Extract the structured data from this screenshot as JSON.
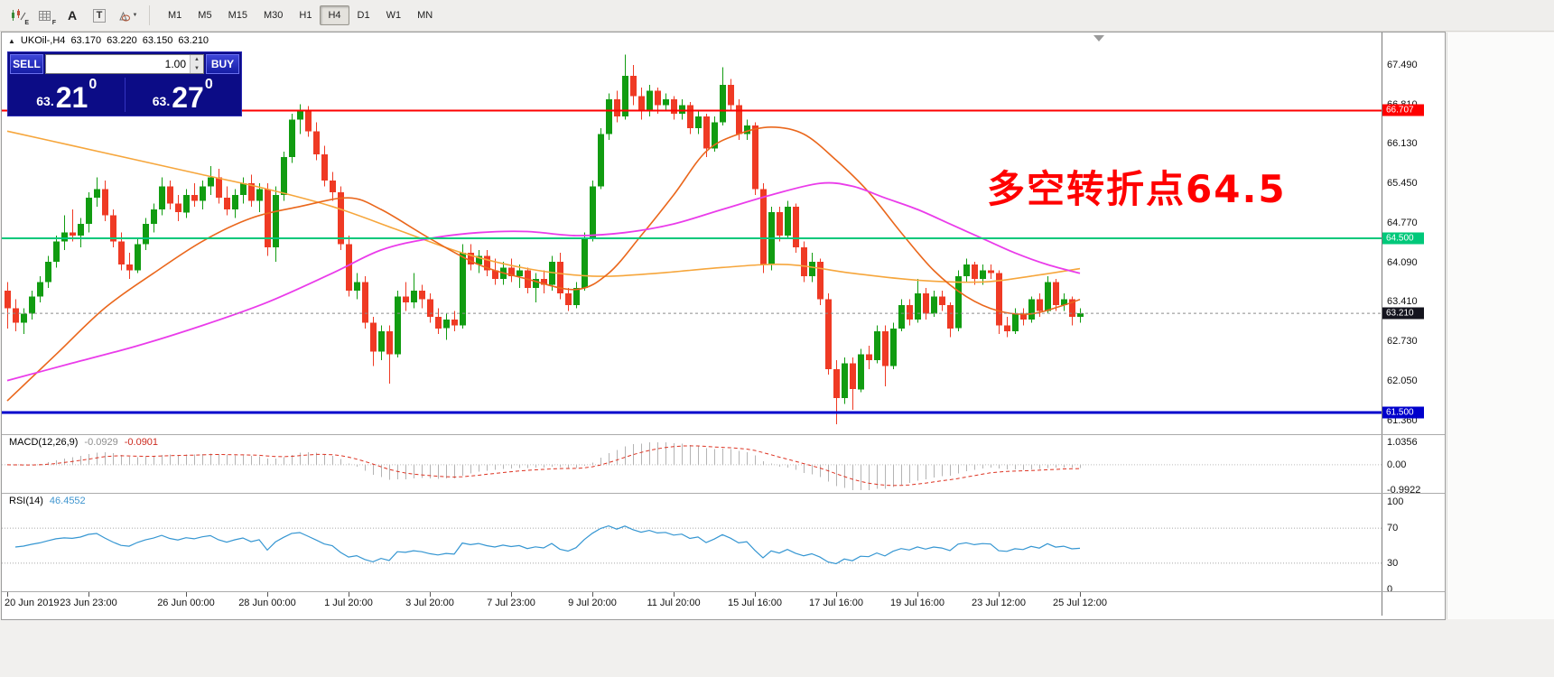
{
  "toolbar": {
    "icons": [
      {
        "name": "indicator-chart-icon",
        "sub": "E"
      },
      {
        "name": "data-grid-icon",
        "sub": "F"
      },
      {
        "name": "text-label-icon",
        "glyph": "A"
      },
      {
        "name": "text-box-icon",
        "glyph": "T"
      },
      {
        "name": "shapes-icon",
        "caret": "▼"
      }
    ],
    "timeframes": [
      {
        "label": "M1",
        "active": false
      },
      {
        "label": "M5",
        "active": false
      },
      {
        "label": "M15",
        "active": false
      },
      {
        "label": "M30",
        "active": false
      },
      {
        "label": "H1",
        "active": false
      },
      {
        "label": "H4",
        "active": true
      },
      {
        "label": "D1",
        "active": false
      },
      {
        "label": "W1",
        "active": false
      },
      {
        "label": "MN",
        "active": false
      }
    ]
  },
  "chart": {
    "panel_toggle_icon": "▲",
    "symbol_tf": "UKOil-,H4",
    "ohlc": {
      "open": "63.170",
      "high": "63.220",
      "low": "63.150",
      "close": "63.210"
    },
    "annotation": {
      "text": "多空转折点64.5",
      "color": "#ff0000"
    }
  },
  "trade_panel": {
    "sell_label": "SELL",
    "buy_label": "BUY",
    "volume": "1.00",
    "icons": {
      "up": "▲",
      "down": "▼"
    },
    "bid": {
      "prefix": "63.",
      "main": "21",
      "sup": "0"
    },
    "ask": {
      "prefix": "63.",
      "main": "27",
      "sup": "0"
    }
  },
  "indicators": {
    "macd": {
      "name": "MACD(12,26,9)",
      "value_main": "-0.0929",
      "value_signal": "-0.0901",
      "axis": [
        "1.0356",
        "0.00",
        "-0.9922"
      ]
    },
    "rsi": {
      "name": "RSI(14)",
      "value": "46.4552",
      "levels": [
        "100",
        "70",
        "30",
        "0"
      ]
    }
  },
  "chart_data": {
    "type": "candlestick",
    "symbol": "UKOil-",
    "timeframe": "H4",
    "up_color": "#119c11",
    "down_color": "#ef3a24",
    "price_ticks": [
      67.49,
      66.81,
      66.13,
      65.45,
      64.77,
      64.09,
      63.41,
      62.73,
      62.05,
      61.36
    ],
    "hlines": [
      {
        "price": 66.707,
        "label": "66.707",
        "color": "#fe0000",
        "width": 2
      },
      {
        "price": 64.5,
        "label": "64.500",
        "color": "#00c87a",
        "width": 2
      },
      {
        "price": 61.5,
        "label": "61.500",
        "color": "#0000cc",
        "width": 3
      }
    ],
    "bid_line": {
      "price": 63.21,
      "label": "63.210",
      "color": "#8b8b8b",
      "tag_bg": "#14141e"
    },
    "macd_display": {
      "max": 1.0356,
      "min": -0.9922,
      "value_main": -0.0929,
      "value_signal": -0.0901
    },
    "rsi_display": {
      "value": 46.4552
    },
    "rsi_levels": [
      70,
      30
    ],
    "candles": [
      [
        63.6,
        63.75,
        62.95,
        63.3
      ],
      [
        63.3,
        63.45,
        62.9,
        63.05
      ],
      [
        63.05,
        63.3,
        62.85,
        63.2
      ],
      [
        63.2,
        63.6,
        63.1,
        63.5
      ],
      [
        63.5,
        63.85,
        63.4,
        63.75
      ],
      [
        63.75,
        64.2,
        63.65,
        64.1
      ],
      [
        64.1,
        64.55,
        64.0,
        64.45
      ],
      [
        64.45,
        64.9,
        64.3,
        64.6
      ],
      [
        64.6,
        65.0,
        64.45,
        64.55
      ],
      [
        64.55,
        64.85,
        64.35,
        64.75
      ],
      [
        64.75,
        65.3,
        64.6,
        65.2
      ],
      [
        65.2,
        65.55,
        65.05,
        65.35
      ],
      [
        65.35,
        65.5,
        64.8,
        64.9
      ],
      [
        64.9,
        65.0,
        64.35,
        64.45
      ],
      [
        64.45,
        64.6,
        63.95,
        64.05
      ],
      [
        64.05,
        64.25,
        63.8,
        63.95
      ],
      [
        63.95,
        64.5,
        63.9,
        64.4
      ],
      [
        64.4,
        64.85,
        64.3,
        64.75
      ],
      [
        64.75,
        65.1,
        64.6,
        65.0
      ],
      [
        65.0,
        65.55,
        64.9,
        65.4
      ],
      [
        65.4,
        65.5,
        65.0,
        65.1
      ],
      [
        65.1,
        65.25,
        64.8,
        64.95
      ],
      [
        64.95,
        65.35,
        64.85,
        65.25
      ],
      [
        65.25,
        65.45,
        65.05,
        65.15
      ],
      [
        65.15,
        65.5,
        65.0,
        65.4
      ],
      [
        65.4,
        65.75,
        65.25,
        65.55
      ],
      [
        65.55,
        65.7,
        65.1,
        65.2
      ],
      [
        65.2,
        65.4,
        64.9,
        65.0
      ],
      [
        65.0,
        65.35,
        64.85,
        65.25
      ],
      [
        65.25,
        65.55,
        65.1,
        65.45
      ],
      [
        65.45,
        65.6,
        65.05,
        65.15
      ],
      [
        65.15,
        65.45,
        64.95,
        65.35
      ],
      [
        65.35,
        65.45,
        64.2,
        64.35
      ],
      [
        64.35,
        65.4,
        64.1,
        65.25
      ],
      [
        65.25,
        66.0,
        65.15,
        65.9
      ],
      [
        65.9,
        66.65,
        65.8,
        66.55
      ],
      [
        66.55,
        66.81,
        66.3,
        66.7
      ],
      [
        66.7,
        66.78,
        66.25,
        66.35
      ],
      [
        66.35,
        66.5,
        65.85,
        65.95
      ],
      [
        65.95,
        66.1,
        65.4,
        65.5
      ],
      [
        65.5,
        65.65,
        65.15,
        65.3
      ],
      [
        65.3,
        65.4,
        64.3,
        64.4
      ],
      [
        64.4,
        64.55,
        63.5,
        63.6
      ],
      [
        63.6,
        63.9,
        63.45,
        63.75
      ],
      [
        63.75,
        63.85,
        62.95,
        63.05
      ],
      [
        63.05,
        63.15,
        62.3,
        62.55
      ],
      [
        62.55,
        63.0,
        62.4,
        62.9
      ],
      [
        62.9,
        63.0,
        62.0,
        62.5
      ],
      [
        62.5,
        63.6,
        62.45,
        63.5
      ],
      [
        63.5,
        63.75,
        63.25,
        63.4
      ],
      [
        63.4,
        63.9,
        63.3,
        63.6
      ],
      [
        63.6,
        63.7,
        63.3,
        63.45
      ],
      [
        63.45,
        63.55,
        63.05,
        63.15
      ],
      [
        63.15,
        63.3,
        62.85,
        62.95
      ],
      [
        62.95,
        63.2,
        62.75,
        63.1
      ],
      [
        63.1,
        63.25,
        62.9,
        63.0
      ],
      [
        63.0,
        64.4,
        62.95,
        64.25
      ],
      [
        64.25,
        64.4,
        63.95,
        64.05
      ],
      [
        64.05,
        64.3,
        63.9,
        64.2
      ],
      [
        64.2,
        64.3,
        63.85,
        63.95
      ],
      [
        63.95,
        64.15,
        63.7,
        63.8
      ],
      [
        63.8,
        64.1,
        63.7,
        64.0
      ],
      [
        64.0,
        64.15,
        63.75,
        63.85
      ],
      [
        63.85,
        64.05,
        63.65,
        63.95
      ],
      [
        63.95,
        64.0,
        63.55,
        63.65
      ],
      [
        63.65,
        63.9,
        63.4,
        63.8
      ],
      [
        63.8,
        63.95,
        63.55,
        63.7
      ],
      [
        63.7,
        64.2,
        63.6,
        64.1
      ],
      [
        64.1,
        64.25,
        63.45,
        63.55
      ],
      [
        63.55,
        63.65,
        63.25,
        63.35
      ],
      [
        63.35,
        63.75,
        63.3,
        63.65
      ],
      [
        63.65,
        64.6,
        63.6,
        64.5
      ],
      [
        64.5,
        65.5,
        64.45,
        65.4
      ],
      [
        65.4,
        66.4,
        65.35,
        66.3
      ],
      [
        66.3,
        67.0,
        66.2,
        66.9
      ],
      [
        66.9,
        67.05,
        66.5,
        66.6
      ],
      [
        66.6,
        67.67,
        66.55,
        67.3
      ],
      [
        67.3,
        67.49,
        66.8,
        66.95
      ],
      [
        66.95,
        67.1,
        66.55,
        66.7
      ],
      [
        66.7,
        67.15,
        66.6,
        67.05
      ],
      [
        67.05,
        67.1,
        66.65,
        66.8
      ],
      [
        66.8,
        67.0,
        66.7,
        66.9
      ],
      [
        66.9,
        66.95,
        66.55,
        66.65
      ],
      [
        66.65,
        66.9,
        66.55,
        66.8
      ],
      [
        66.8,
        66.85,
        66.3,
        66.4
      ],
      [
        66.4,
        66.7,
        66.3,
        66.6
      ],
      [
        66.6,
        66.65,
        65.9,
        66.05
      ],
      [
        66.05,
        66.6,
        66.0,
        66.5
      ],
      [
        66.5,
        67.45,
        66.45,
        67.15
      ],
      [
        67.15,
        67.25,
        66.7,
        66.8
      ],
      [
        66.8,
        66.9,
        66.2,
        66.3
      ],
      [
        66.3,
        66.55,
        66.2,
        66.45
      ],
      [
        66.45,
        66.5,
        65.25,
        65.35
      ],
      [
        65.35,
        65.45,
        63.9,
        64.05
      ],
      [
        64.05,
        65.05,
        63.95,
        64.95
      ],
      [
        64.95,
        65.05,
        64.45,
        64.55
      ],
      [
        64.55,
        65.15,
        64.5,
        65.05
      ],
      [
        65.05,
        65.1,
        64.25,
        64.35
      ],
      [
        64.35,
        64.45,
        63.75,
        63.85
      ],
      [
        63.85,
        64.25,
        63.75,
        64.1
      ],
      [
        64.1,
        64.15,
        63.35,
        63.45
      ],
      [
        63.45,
        63.55,
        62.15,
        62.25
      ],
      [
        62.25,
        62.4,
        61.3,
        61.75
      ],
      [
        61.75,
        62.45,
        61.65,
        62.35
      ],
      [
        62.35,
        62.45,
        61.55,
        61.9
      ],
      [
        61.9,
        62.6,
        61.85,
        62.5
      ],
      [
        62.5,
        62.65,
        62.25,
        62.4
      ],
      [
        62.4,
        63.0,
        62.35,
        62.9
      ],
      [
        62.9,
        63.0,
        61.95,
        62.3
      ],
      [
        62.3,
        63.05,
        62.25,
        62.95
      ],
      [
        62.95,
        63.45,
        62.9,
        63.35
      ],
      [
        63.35,
        63.45,
        63.0,
        63.1
      ],
      [
        63.1,
        63.8,
        63.05,
        63.55
      ],
      [
        63.55,
        63.65,
        63.1,
        63.2
      ],
      [
        63.2,
        63.6,
        63.15,
        63.5
      ],
      [
        63.5,
        63.6,
        63.25,
        63.35
      ],
      [
        63.35,
        63.4,
        62.8,
        62.95
      ],
      [
        62.95,
        63.95,
        62.9,
        63.85
      ],
      [
        63.85,
        64.15,
        63.75,
        64.05
      ],
      [
        64.05,
        64.1,
        63.7,
        63.8
      ],
      [
        63.8,
        64.05,
        63.7,
        63.95
      ],
      [
        63.95,
        64.05,
        63.8,
        63.9
      ],
      [
        63.9,
        63.95,
        62.85,
        63.0
      ],
      [
        63.0,
        63.15,
        62.8,
        62.9
      ],
      [
        62.9,
        63.3,
        62.85,
        63.2
      ],
      [
        63.2,
        63.3,
        63.0,
        63.1
      ],
      [
        63.1,
        63.5,
        63.05,
        63.45
      ],
      [
        63.45,
        63.55,
        63.15,
        63.25
      ],
      [
        63.25,
        63.85,
        63.2,
        63.75
      ],
      [
        63.75,
        63.8,
        63.25,
        63.35
      ],
      [
        63.35,
        63.55,
        63.25,
        63.45
      ],
      [
        63.45,
        63.5,
        63.0,
        63.15
      ],
      [
        63.15,
        63.3,
        63.05,
        63.21
      ]
    ],
    "ma_lines": [
      {
        "name": "ma-gold",
        "color": "#f6a63c",
        "width": 1.6,
        "points": [
          [
            0,
            66.35
          ],
          [
            8,
            66.1
          ],
          [
            16,
            65.85
          ],
          [
            24,
            65.6
          ],
          [
            32,
            65.35
          ],
          [
            40,
            65.05
          ],
          [
            48,
            64.65
          ],
          [
            56,
            64.25
          ],
          [
            64,
            63.98
          ],
          [
            72,
            63.85
          ],
          [
            80,
            63.9
          ],
          [
            88,
            64.0
          ],
          [
            96,
            64.05
          ],
          [
            104,
            63.9
          ],
          [
            112,
            63.78
          ],
          [
            120,
            63.75
          ],
          [
            126,
            63.85
          ],
          [
            132,
            63.98
          ]
        ]
      },
      {
        "name": "ma-orangered",
        "color": "#ea671c",
        "width": 1.6,
        "points": [
          [
            0,
            61.7
          ],
          [
            6,
            62.5
          ],
          [
            12,
            63.3
          ],
          [
            18,
            63.9
          ],
          [
            24,
            64.45
          ],
          [
            30,
            64.85
          ],
          [
            36,
            65.05
          ],
          [
            42,
            65.2
          ],
          [
            46,
            65.0
          ],
          [
            52,
            64.5
          ],
          [
            58,
            64.05
          ],
          [
            64,
            63.8
          ],
          [
            70,
            63.62
          ],
          [
            74,
            63.9
          ],
          [
            78,
            64.55
          ],
          [
            82,
            65.25
          ],
          [
            86,
            66.0
          ],
          [
            90,
            66.3
          ],
          [
            94,
            66.42
          ],
          [
            98,
            66.3
          ],
          [
            102,
            65.85
          ],
          [
            106,
            65.3
          ],
          [
            110,
            64.6
          ],
          [
            114,
            63.95
          ],
          [
            118,
            63.5
          ],
          [
            122,
            63.25
          ],
          [
            126,
            63.2
          ],
          [
            130,
            63.35
          ],
          [
            132,
            63.45
          ]
        ]
      },
      {
        "name": "ma-magenta",
        "color": "#ea3cea",
        "width": 1.8,
        "points": [
          [
            0,
            62.05
          ],
          [
            8,
            62.35
          ],
          [
            16,
            62.65
          ],
          [
            24,
            63.0
          ],
          [
            32,
            63.4
          ],
          [
            40,
            63.9
          ],
          [
            46,
            64.3
          ],
          [
            52,
            64.5
          ],
          [
            58,
            64.6
          ],
          [
            64,
            64.62
          ],
          [
            70,
            64.55
          ],
          [
            76,
            64.6
          ],
          [
            82,
            64.75
          ],
          [
            88,
            65.0
          ],
          [
            94,
            65.25
          ],
          [
            100,
            65.45
          ],
          [
            104,
            65.4
          ],
          [
            108,
            65.2
          ],
          [
            112,
            65.0
          ],
          [
            116,
            64.75
          ],
          [
            120,
            64.5
          ],
          [
            124,
            64.25
          ],
          [
            128,
            64.05
          ],
          [
            132,
            63.9
          ]
        ]
      }
    ],
    "time_labels": [
      {
        "bar": 0,
        "label": "20 Jun 2019"
      },
      {
        "bar": 10,
        "label": "23 Jun 23:00"
      },
      {
        "bar": 22,
        "label": "26 Jun 00:00"
      },
      {
        "bar": 32,
        "label": "28 Jun 00:00"
      },
      {
        "bar": 42,
        "label": "1 Jul 20:00"
      },
      {
        "bar": 52,
        "label": "3 Jul 20:00"
      },
      {
        "bar": 62,
        "label": "7 Jul 23:00"
      },
      {
        "bar": 72,
        "label": "9 Jul 20:00"
      },
      {
        "bar": 82,
        "label": "11 Jul 20:00"
      },
      {
        "bar": 92,
        "label": "15 Jul 16:00"
      },
      {
        "bar": 102,
        "label": "17 Jul 16:00"
      },
      {
        "bar": 112,
        "label": "19 Jul 16:00"
      },
      {
        "bar": 122,
        "label": "23 Jul 12:00"
      },
      {
        "bar": 132,
        "label": "25 Jul 12:00"
      }
    ]
  }
}
